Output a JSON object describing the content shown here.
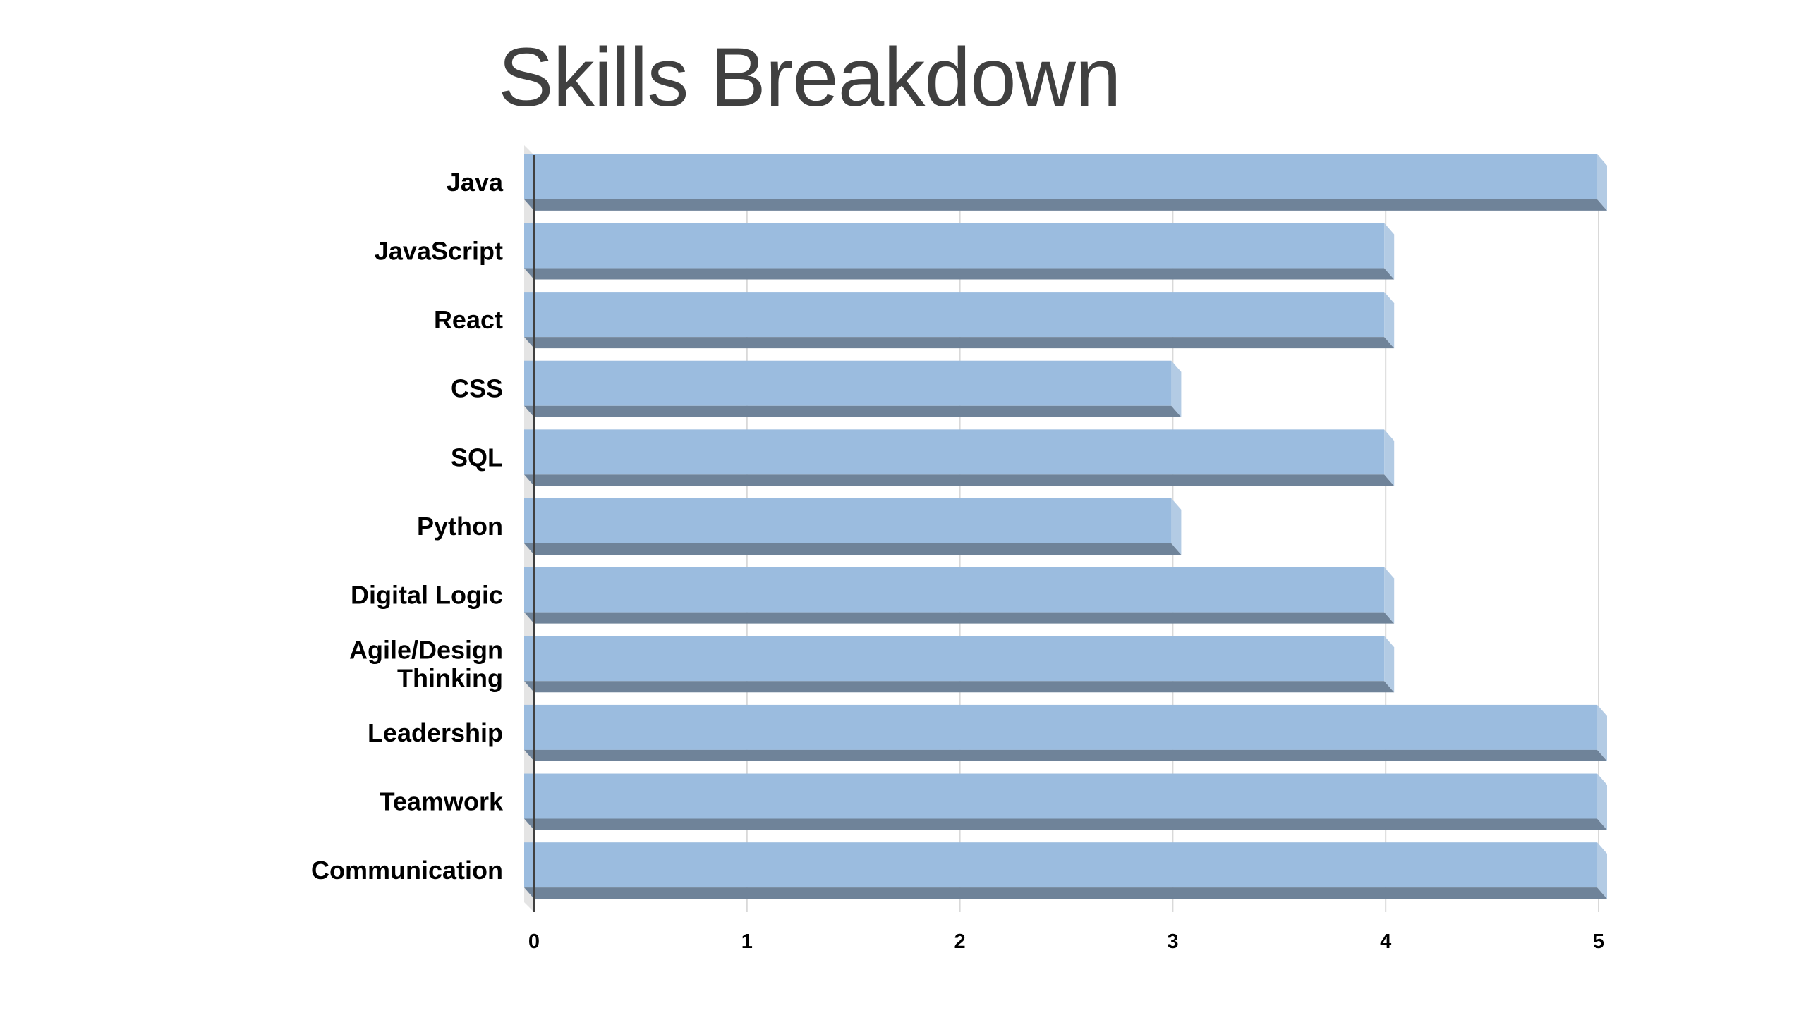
{
  "chart_data": {
    "type": "bar",
    "orientation": "horizontal",
    "style": "3d",
    "title": "Skills Breakdown",
    "xlabel": "",
    "ylabel": "",
    "categories": [
      "Java",
      "JavaScript",
      "React",
      "CSS",
      "SQL",
      "Python",
      "Digital Logic",
      "Agile/Design Thinking",
      "Leadership",
      "Teamwork",
      "Communication"
    ],
    "category_lines": [
      [
        "Java"
      ],
      [
        "JavaScript"
      ],
      [
        "React"
      ],
      [
        "CSS"
      ],
      [
        "SQL"
      ],
      [
        "Python"
      ],
      [
        "Digital Logic"
      ],
      [
        "Agile/Design",
        "Thinking"
      ],
      [
        "Leadership"
      ],
      [
        "Teamwork"
      ],
      [
        "Communication"
      ]
    ],
    "values": [
      5,
      4,
      4,
      3,
      4,
      3,
      4,
      4,
      5,
      5,
      5
    ],
    "xlim": [
      0,
      5
    ],
    "ticks": [
      "0",
      "1",
      "2",
      "3",
      "4",
      "5"
    ],
    "grid": true,
    "legend": "none",
    "colors": {
      "bar_face": "#9bbcdf",
      "bar_bottom": "#6f8399",
      "bar_side": "#b3cbe4",
      "grid": "#d9d9d9",
      "axis": "#404040",
      "title": "#404040"
    }
  }
}
